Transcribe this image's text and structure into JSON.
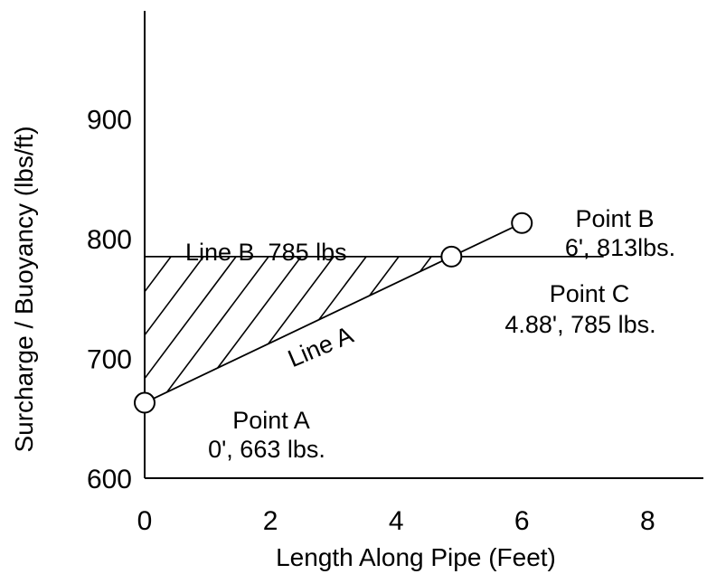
{
  "chart_data": {
    "type": "line",
    "title": "",
    "xlabel": "Length Along Pipe (Feet)",
    "ylabel": "Surcharge / Buoyancy (lbs/ft)",
    "xlim": [
      0,
      8.7
    ],
    "ylim": [
      600,
      1000
    ],
    "xticks": [
      "0",
      "2",
      "4",
      "6",
      "8"
    ],
    "yticks": [
      "600",
      "700",
      "800",
      "900"
    ],
    "grid": false,
    "shaded_region": "between Line A and Line B from x=0 to x=4.88",
    "series": [
      {
        "name": "Line A",
        "x": [
          0,
          6
        ],
        "y": [
          663,
          813
        ]
      },
      {
        "name": "Line B  785 lbs",
        "x": [
          0,
          7.3
        ],
        "y": [
          785,
          785
        ]
      }
    ],
    "points": [
      {
        "name": "Point A",
        "label": "0', 663 lbs.",
        "x": 0,
        "y": 663
      },
      {
        "name": "Point B",
        "label": "6', 813lbs.",
        "x": 6,
        "y": 813
      },
      {
        "name": "Point C",
        "label": "4.88', 785 lbs.",
        "x": 4.88,
        "y": 785
      }
    ]
  }
}
